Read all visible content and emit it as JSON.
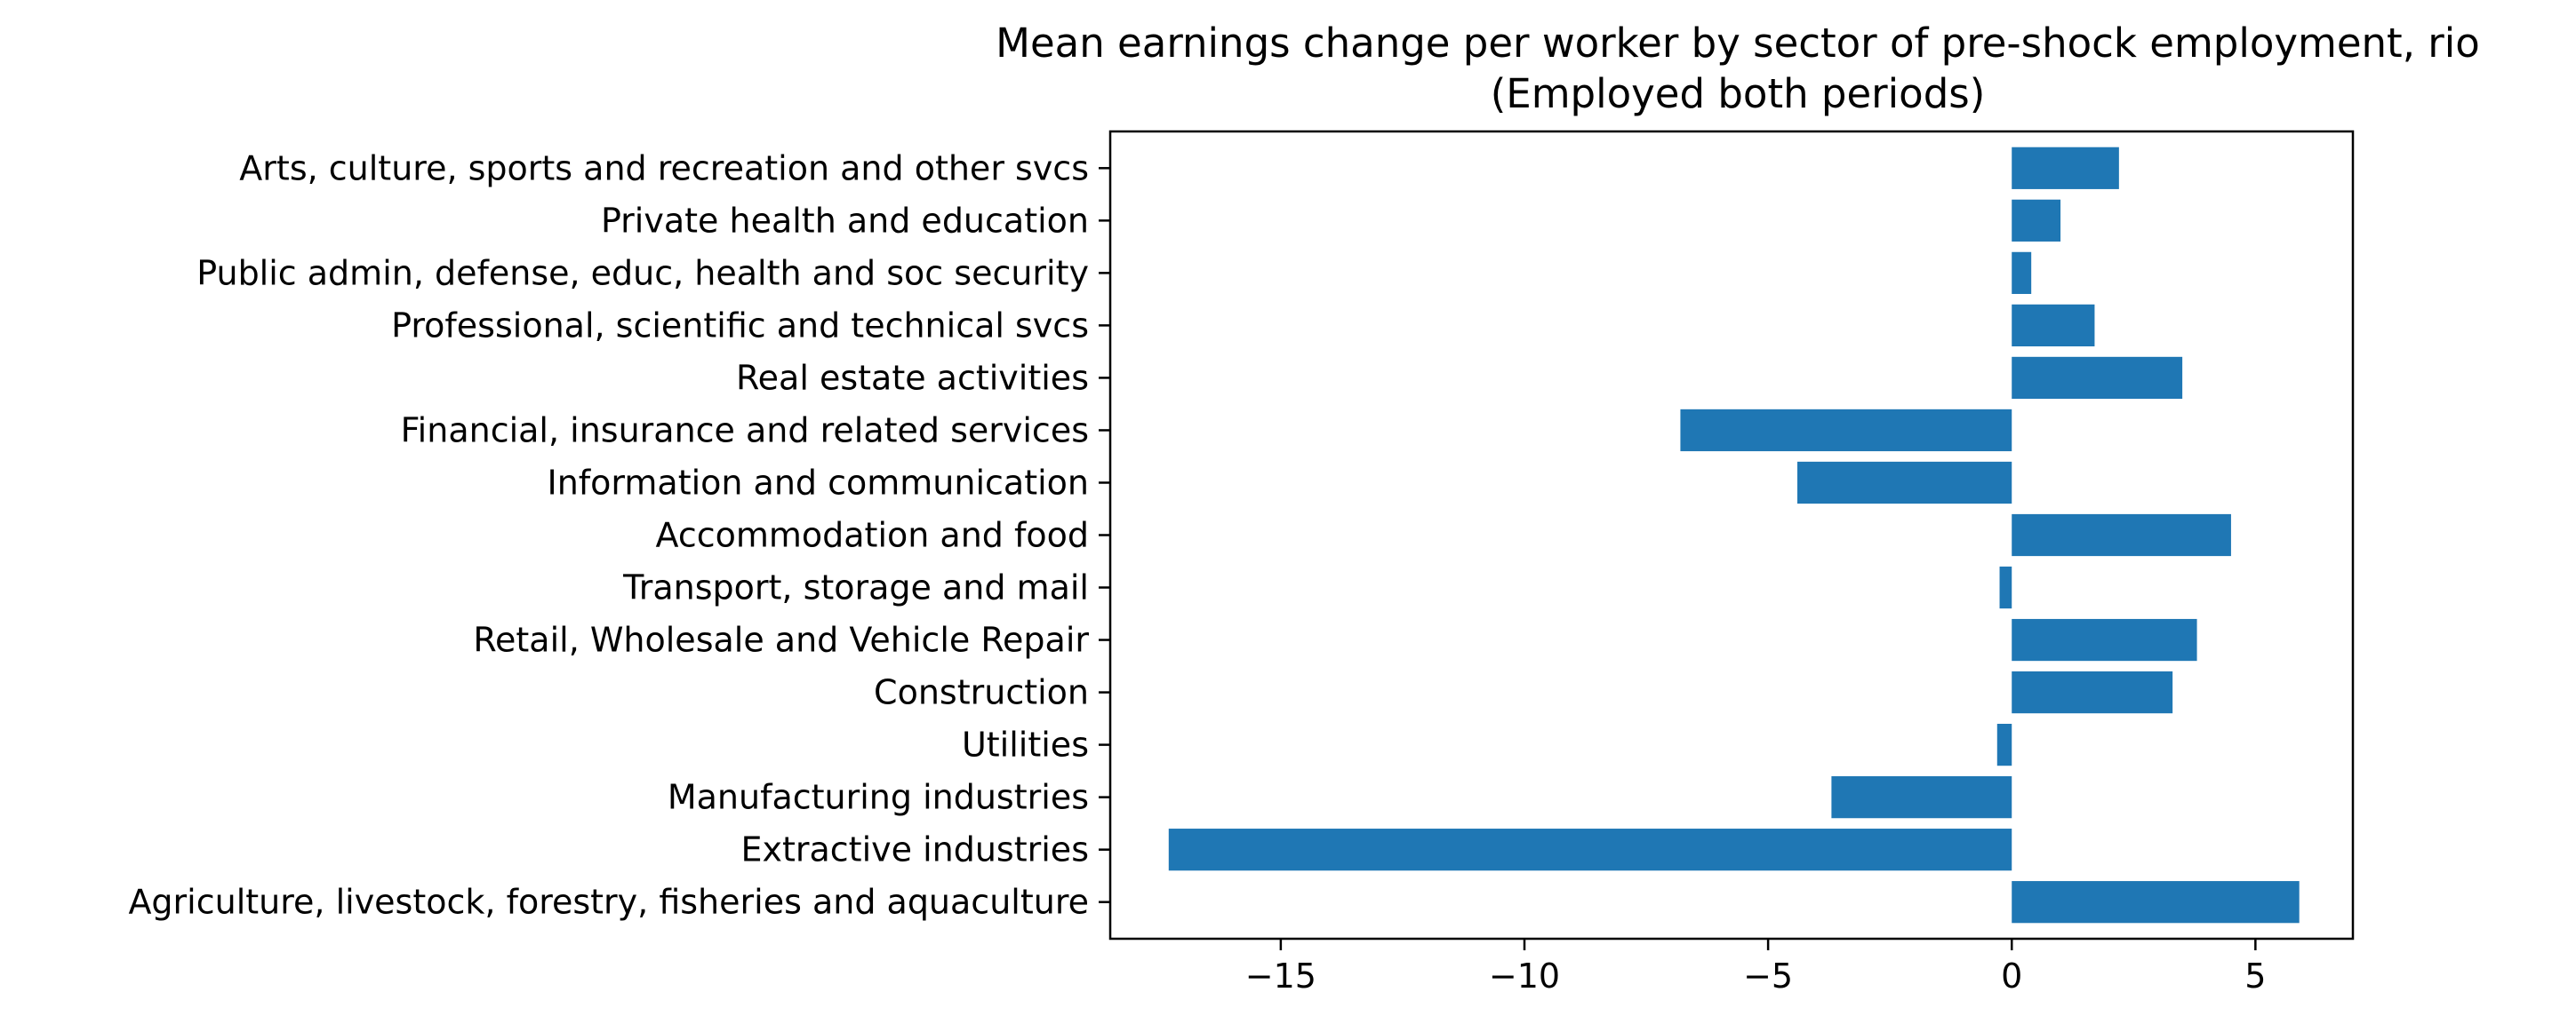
{
  "chart_data": {
    "type": "bar",
    "orientation": "horizontal",
    "title": "Mean earnings change per worker by sector of pre-shock employment, rio",
    "subtitle": "(Employed both periods)",
    "xlabel": "",
    "ylabel": "",
    "xlim": [
      -18.5,
      7.0
    ],
    "xticks": [
      -15,
      -10,
      -5,
      0,
      5
    ],
    "xtick_labels": [
      "−15",
      "−10",
      "−5",
      "0",
      "5"
    ],
    "grid": false,
    "bar_color": "#1f77b4",
    "categories": [
      "Agriculture, livestock, forestry, fisheries and aquaculture",
      "Extractive industries",
      "Manufacturing industries",
      "Utilities",
      "Construction",
      "Retail, Wholesale and Vehicle Repair",
      "Transport, storage and mail",
      "Accommodation and food",
      "Information and communication",
      "Financial, insurance and related services",
      "Real estate activities",
      "Professional, scientific and technical svcs",
      "Public admin, defense, educ, health and soc security",
      "Private health and education",
      "Arts, culture, sports and recreation and other svcs"
    ],
    "values": [
      5.9,
      -17.3,
      -3.7,
      -0.3,
      3.3,
      3.8,
      -0.25,
      4.5,
      -4.4,
      -6.8,
      3.5,
      1.7,
      0.4,
      1.0,
      2.2
    ]
  }
}
